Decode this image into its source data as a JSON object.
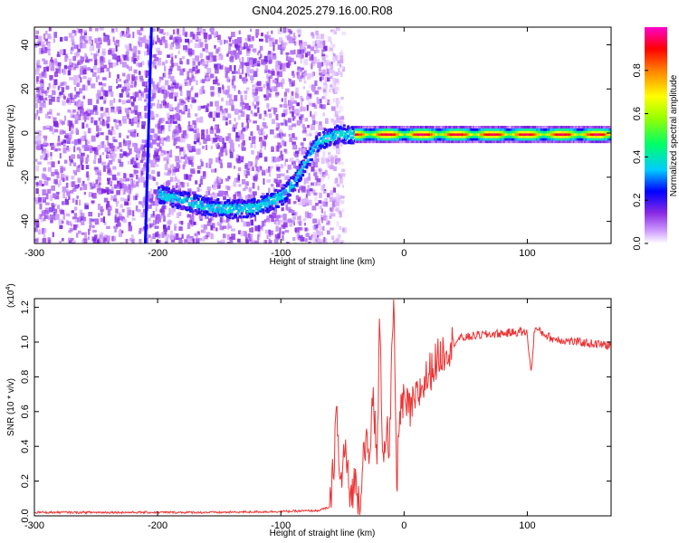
{
  "title": "GN04.2025.279.16.00.R08",
  "chart_data": [
    {
      "type": "heatmap",
      "xlabel": "Height of straight line (km)",
      "ylabel": "Frequency (Hz)",
      "xlim": [
        -300,
        168
      ],
      "ylim": [
        -50,
        48
      ],
      "xticks": [
        -300,
        -200,
        -100,
        0,
        100
      ],
      "yticks": [
        -40,
        -20,
        0,
        20,
        40
      ],
      "colorbar": {
        "label": "Normalized spectral amplitude",
        "range": [
          0,
          1
        ],
        "ticks": [
          "0.0",
          "0.2",
          "0.4",
          "0.6",
          "0.8"
        ],
        "colors": [
          "#ffffff",
          "#8a2be2",
          "#0000ff",
          "#00ffff",
          "#00ff00",
          "#ffff00",
          "#ff8000",
          "#ff0000",
          "#ff00ff"
        ]
      },
      "features": {
        "noise_region_x": [
          -300,
          -60
        ],
        "vertical_streak": {
          "x_top": -205,
          "x_bottom": -210,
          "y": [
            -50,
            48
          ]
        },
        "curved_trace": [
          {
            "x": -200,
            "y": -27
          },
          {
            "x": -180,
            "y": -30
          },
          {
            "x": -160,
            "y": -33
          },
          {
            "x": -140,
            "y": -34
          },
          {
            "x": -120,
            "y": -33
          },
          {
            "x": -100,
            "y": -28
          },
          {
            "x": -90,
            "y": -22
          },
          {
            "x": -80,
            "y": -12
          },
          {
            "x": -70,
            "y": -3
          },
          {
            "x": -55,
            "y": 0
          },
          {
            "x": -40,
            "y": 0
          }
        ],
        "steady_line": {
          "x": [
            -40,
            168
          ],
          "y": 0,
          "peak_amplitude": 0.95
        }
      }
    },
    {
      "type": "line",
      "xlabel": "Height of straight line (km)",
      "ylabel": "SNR (10 * v/v)",
      "y_multiplier": "(x10",
      "y_multiplier_exp": "4",
      "y_multiplier_close": ")",
      "xlim": [
        -300,
        168
      ],
      "ylim": [
        0,
        1.25
      ],
      "xticks": [
        -300,
        -200,
        -100,
        0,
        100
      ],
      "yticks": [
        "0.0",
        "0.2",
        "0.4",
        "0.6",
        "0.8",
        "1.0",
        "1.2"
      ],
      "series": [
        {
          "color": "#ee3333",
          "points": [
            {
              "x": -300,
              "y": 0.02
            },
            {
              "x": -250,
              "y": 0.02
            },
            {
              "x": -200,
              "y": 0.02
            },
            {
              "x": -150,
              "y": 0.02
            },
            {
              "x": -100,
              "y": 0.025
            },
            {
              "x": -70,
              "y": 0.03
            },
            {
              "x": -60,
              "y": 0.05
            },
            {
              "x": -57,
              "y": 0.3
            },
            {
              "x": -55,
              "y": 0.65
            },
            {
              "x": -52,
              "y": 0.15
            },
            {
              "x": -48,
              "y": 0.4
            },
            {
              "x": -44,
              "y": 0.1
            },
            {
              "x": -40,
              "y": 0.2
            },
            {
              "x": -36,
              "y": 0.08
            },
            {
              "x": -32,
              "y": 0.45
            },
            {
              "x": -28,
              "y": 0.3
            },
            {
              "x": -25,
              "y": 0.75
            },
            {
              "x": -22,
              "y": 0.25
            },
            {
              "x": -20,
              "y": 1.1
            },
            {
              "x": -17,
              "y": 0.35
            },
            {
              "x": -14,
              "y": 0.55
            },
            {
              "x": -12,
              "y": 0.3
            },
            {
              "x": -10,
              "y": 0.9
            },
            {
              "x": -8,
              "y": 1.2
            },
            {
              "x": -6,
              "y": 0.1
            },
            {
              "x": -4,
              "y": 0.6
            },
            {
              "x": 0,
              "y": 0.65
            },
            {
              "x": 5,
              "y": 0.6
            },
            {
              "x": 15,
              "y": 0.75
            },
            {
              "x": 25,
              "y": 0.88
            },
            {
              "x": 35,
              "y": 0.97
            },
            {
              "x": 45,
              "y": 1.02
            },
            {
              "x": 60,
              "y": 1.04
            },
            {
              "x": 80,
              "y": 1.05
            },
            {
              "x": 95,
              "y": 1.06
            },
            {
              "x": 100,
              "y": 1.05
            },
            {
              "x": 103,
              "y": 0.82
            },
            {
              "x": 106,
              "y": 1.08
            },
            {
              "x": 120,
              "y": 1.02
            },
            {
              "x": 140,
              "y": 1.0
            },
            {
              "x": 168,
              "y": 0.98
            }
          ]
        }
      ]
    }
  ]
}
